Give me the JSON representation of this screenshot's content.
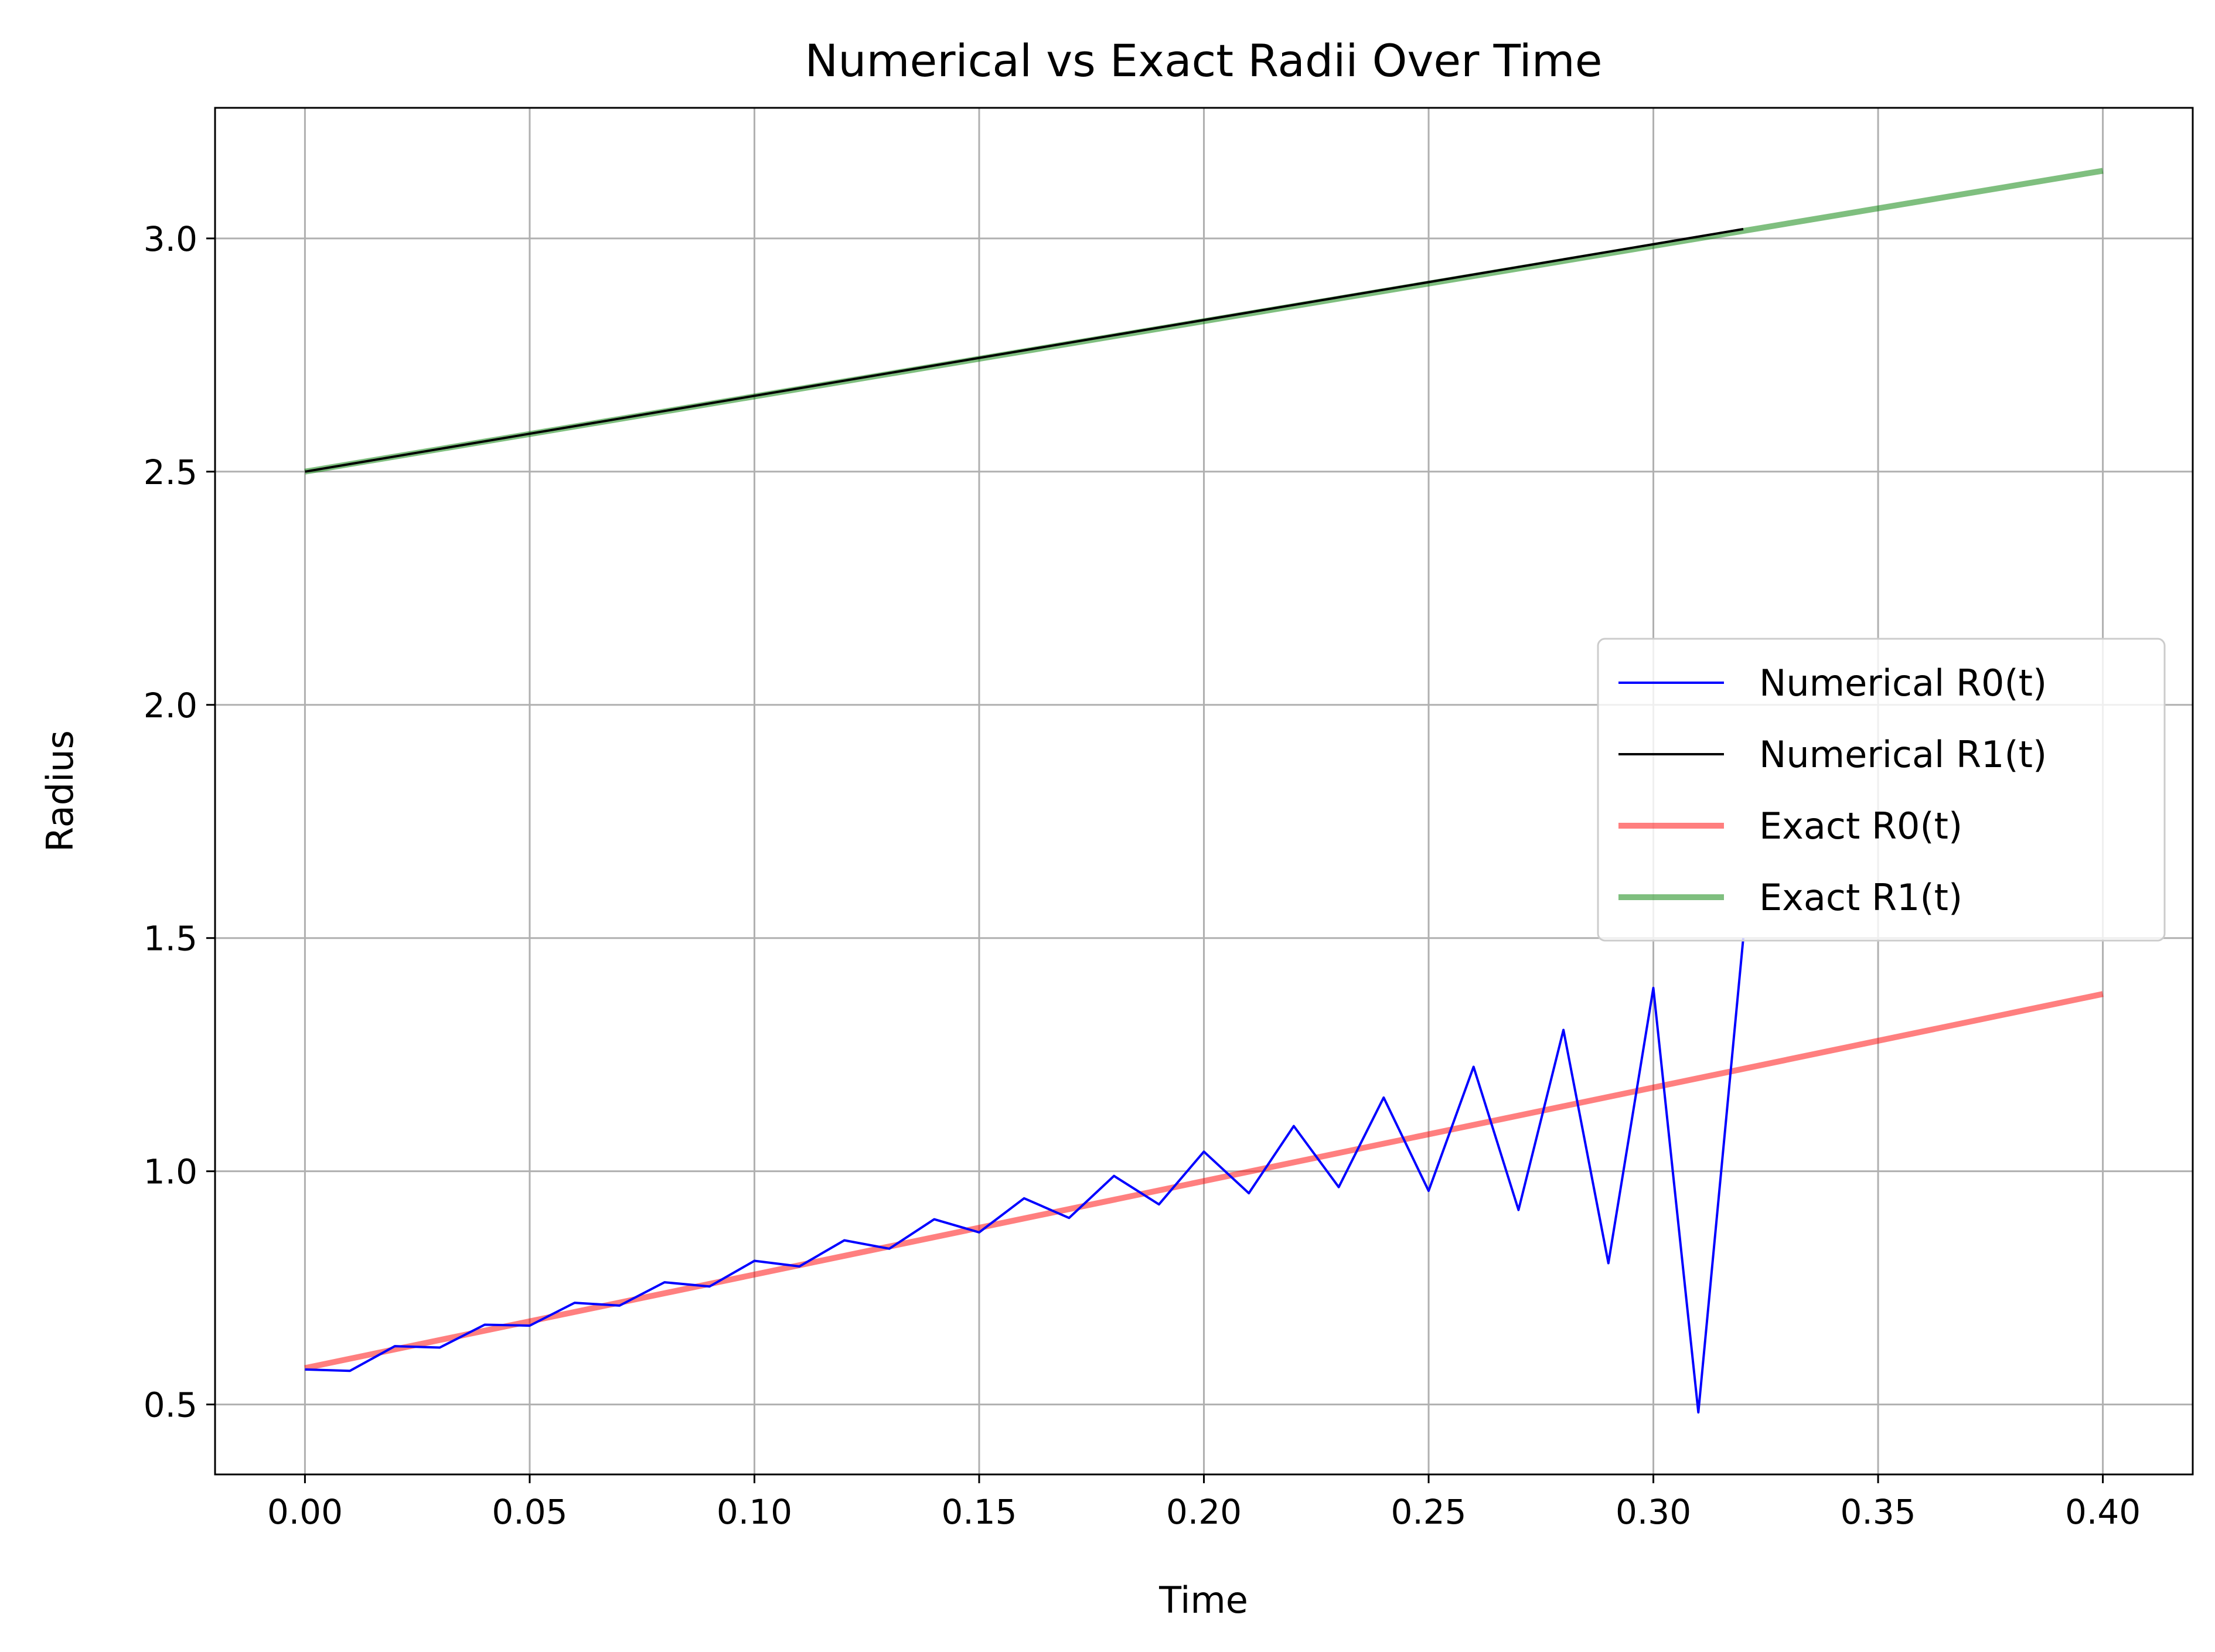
{
  "chart_data": {
    "type": "line",
    "title": "Numerical vs Exact Radii Over Time",
    "xlabel": "Time",
    "ylabel": "Radius",
    "xlim": [
      -0.02,
      0.42
    ],
    "ylim": [
      0.35,
      3.28
    ],
    "xticks": [
      "0.00",
      "0.05",
      "0.10",
      "0.15",
      "0.20",
      "0.25",
      "0.30",
      "0.35",
      "0.40"
    ],
    "xtick_values": [
      0.0,
      0.05,
      0.1,
      0.15,
      0.2,
      0.25,
      0.3,
      0.35,
      0.4
    ],
    "yticks": [
      "0.5",
      "1.0",
      "1.5",
      "2.0",
      "2.5",
      "3.0"
    ],
    "ytick_values": [
      0.5,
      1.0,
      1.5,
      2.0,
      2.5,
      3.0
    ],
    "grid": true,
    "legend_position": "center-right",
    "series": [
      {
        "name": "Numerical R0(t)",
        "color": "#0000ff",
        "width": "thin",
        "opacity": 1,
        "x": [
          0.0,
          0.01,
          0.02,
          0.03,
          0.04,
          0.05,
          0.06,
          0.07,
          0.08,
          0.09,
          0.1,
          0.11,
          0.12,
          0.13,
          0.14,
          0.15,
          0.16,
          0.17,
          0.18,
          0.19,
          0.2,
          0.21,
          0.22,
          0.23,
          0.24,
          0.25,
          0.26,
          0.27,
          0.28,
          0.29,
          0.3,
          0.31,
          0.32
        ],
        "y": [
          0.575,
          0.572,
          0.625,
          0.622,
          0.671,
          0.669,
          0.718,
          0.712,
          0.762,
          0.753,
          0.808,
          0.796,
          0.852,
          0.834,
          0.897,
          0.869,
          0.942,
          0.9,
          0.99,
          0.929,
          1.042,
          0.953,
          1.097,
          0.966,
          1.158,
          0.958,
          1.224,
          0.917,
          1.303,
          0.803,
          1.393,
          0.483,
          1.5
        ]
      },
      {
        "name": "Numerical R1(t)",
        "color": "#000000",
        "width": "thin",
        "opacity": 1,
        "x": [
          0.0,
          0.32
        ],
        "y": [
          2.5,
          3.02
        ]
      },
      {
        "name": "Exact R0(t)",
        "color": "#ff0000",
        "width": "thick",
        "opacity": 0.5,
        "x": [
          0.0,
          0.4
        ],
        "y": [
          0.578,
          1.38
        ]
      },
      {
        "name": "Exact R1(t)",
        "color": "#008000",
        "width": "thick",
        "opacity": 0.5,
        "x": [
          0.0,
          0.4
        ],
        "y": [
          2.5,
          3.145
        ]
      }
    ]
  }
}
